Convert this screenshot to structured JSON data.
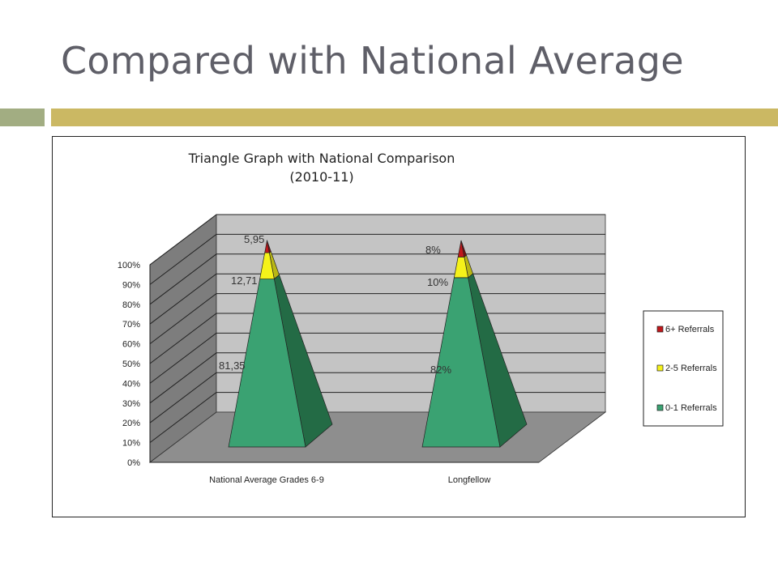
{
  "slide": {
    "title": "Compared with National Average"
  },
  "colors": {
    "accent_left": "#a2ad82",
    "accent_right": "#cbb863",
    "series_0_1": "#3aa272",
    "series_2_5": "#f5f21a",
    "series_6plus": "#c0171b"
  },
  "chart_data": {
    "type": "3d-pyramid",
    "title_line1": "Triangle Graph with National Comparison",
    "title_line2": "(2010-11)",
    "categories": [
      "National Average Grades 6-9",
      "Longfellow"
    ],
    "series": [
      {
        "name": "0-1 Referrals",
        "values": [
          81.35,
          82
        ],
        "labels": [
          "81,35",
          "82%"
        ],
        "color": "#3aa272"
      },
      {
        "name": "2-5 Referrals",
        "values": [
          12.71,
          10
        ],
        "labels": [
          "12,71",
          "10%"
        ],
        "color": "#f5f21a"
      },
      {
        "name": "6+ Referrals",
        "values": [
          5.95,
          8
        ],
        "labels": [
          "5,95",
          "8%"
        ],
        "color": "#c0171b"
      }
    ],
    "yticks": [
      "0%",
      "10%",
      "20%",
      "30%",
      "40%",
      "50%",
      "60%",
      "70%",
      "80%",
      "90%",
      "100%"
    ],
    "ylim": [
      0,
      100
    ],
    "stacked": "100%",
    "legend_position": "right",
    "legend_order": [
      "6+ Referrals",
      "2-5 Referrals",
      "0-1 Referrals"
    ],
    "grid": true
  }
}
